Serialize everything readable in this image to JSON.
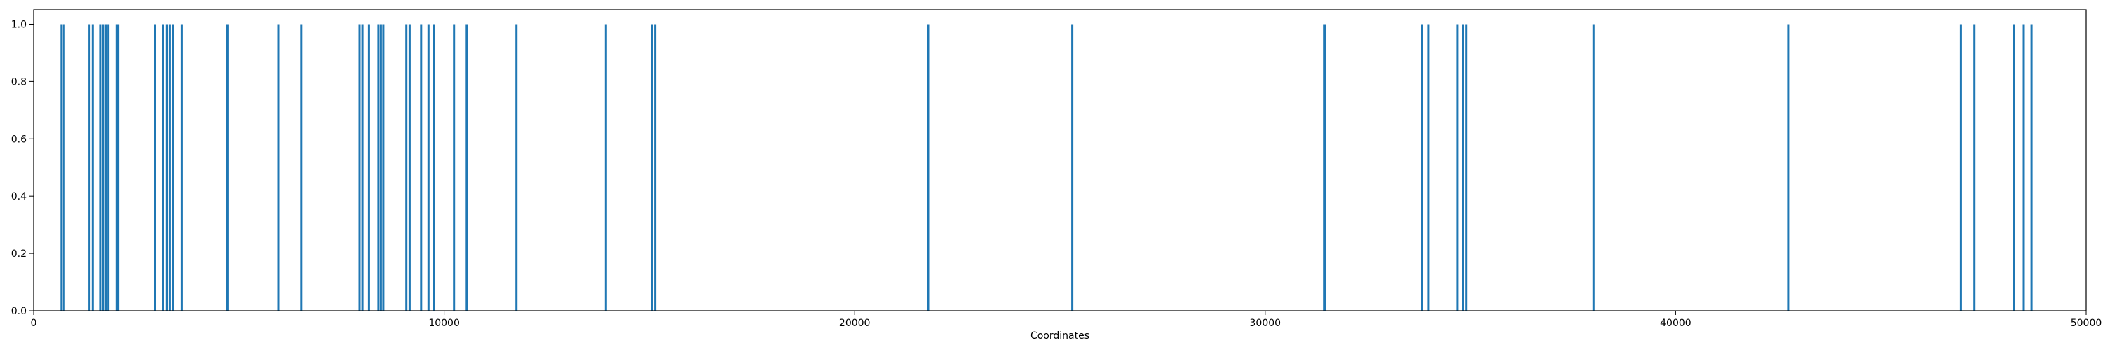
{
  "chart_data": {
    "type": "bar",
    "title": "",
    "xlabel": "Coordinates",
    "ylabel": "",
    "xlim": [
      0,
      50000
    ],
    "ylim": [
      0,
      1.05
    ],
    "grid": false,
    "bar_color": "#1f77b4",
    "x_ticks": [
      0,
      10000,
      20000,
      30000,
      40000,
      50000
    ],
    "x_tick_labels": [
      "0",
      "10000",
      "20000",
      "30000",
      "40000",
      "50000"
    ],
    "y_ticks": [
      0.0,
      0.2,
      0.4,
      0.6,
      0.8,
      1.0
    ],
    "y_tick_labels": [
      "0.0",
      "0.2",
      "0.4",
      "0.6",
      "0.8",
      "1.0"
    ],
    "series": [
      {
        "x": [
          680,
          740,
          1360,
          1440,
          1620,
          1690,
          1760,
          1820,
          2020,
          2060,
          2950,
          3150,
          3250,
          3320,
          3390,
          3610,
          4720,
          5960,
          6520,
          7940,
          8010,
          8170,
          8400,
          8460,
          8520,
          9080,
          9160,
          9440,
          9620,
          9760,
          10240,
          10550,
          11760,
          13940,
          15060,
          15140,
          21790,
          25300,
          31450,
          33820,
          33980,
          34680,
          34820,
          34900,
          38000,
          42740,
          46950,
          47280,
          48250,
          48480,
          48670
        ],
        "values": [
          1,
          1,
          1,
          1,
          1,
          1,
          1,
          1,
          1,
          1,
          1,
          1,
          1,
          1,
          1,
          1,
          1,
          1,
          1,
          1,
          1,
          1,
          1,
          1,
          1,
          1,
          1,
          1,
          1,
          1,
          1,
          1,
          1,
          1,
          1,
          1,
          1,
          1,
          1,
          1,
          1,
          1,
          1,
          1,
          1,
          1,
          1,
          1,
          1,
          1,
          1
        ]
      }
    ]
  }
}
